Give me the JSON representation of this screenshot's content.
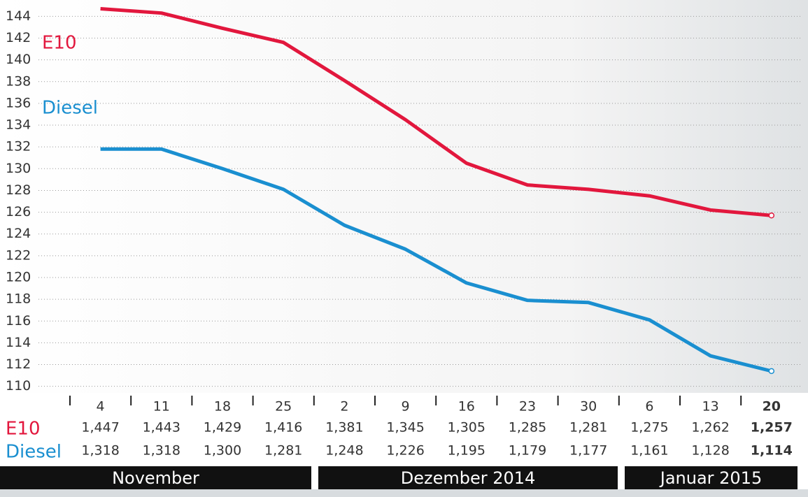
{
  "chart_data": {
    "type": "line",
    "categories": [
      "4",
      "11",
      "18",
      "25",
      "2",
      "9",
      "16",
      "23",
      "30",
      "6",
      "13",
      "20"
    ],
    "months": [
      "November",
      "Dezember 2014",
      "Januar 2015"
    ],
    "series": [
      {
        "name": "E10",
        "color": "#e2173d",
        "values": [
          144.7,
          144.3,
          142.9,
          141.6,
          138.1,
          134.5,
          130.5,
          128.5,
          128.1,
          127.5,
          126.2,
          125.7
        ],
        "value_labels": [
          "1,447",
          "1,443",
          "1,429",
          "1,416",
          "1,381",
          "1,345",
          "1,305",
          "1,285",
          "1,281",
          "1,275",
          "1,262",
          "1,257"
        ]
      },
      {
        "name": "Diesel",
        "color": "#1a8fd0",
        "values": [
          131.8,
          131.8,
          130.0,
          128.1,
          124.8,
          122.6,
          119.5,
          117.9,
          117.7,
          116.1,
          112.8,
          111.4
        ],
        "value_labels": [
          "1,318",
          "1,318",
          "1,300",
          "1,281",
          "1,248",
          "1,226",
          "1,195",
          "1,179",
          "1,177",
          "1,161",
          "1,128",
          "1,114"
        ]
      }
    ],
    "ylim": [
      109.4,
      145.5
    ],
    "yticks": [
      110,
      112,
      114,
      116,
      118,
      120,
      122,
      124,
      126,
      128,
      130,
      132,
      134,
      136,
      138,
      140,
      142,
      144
    ],
    "grid": true
  }
}
